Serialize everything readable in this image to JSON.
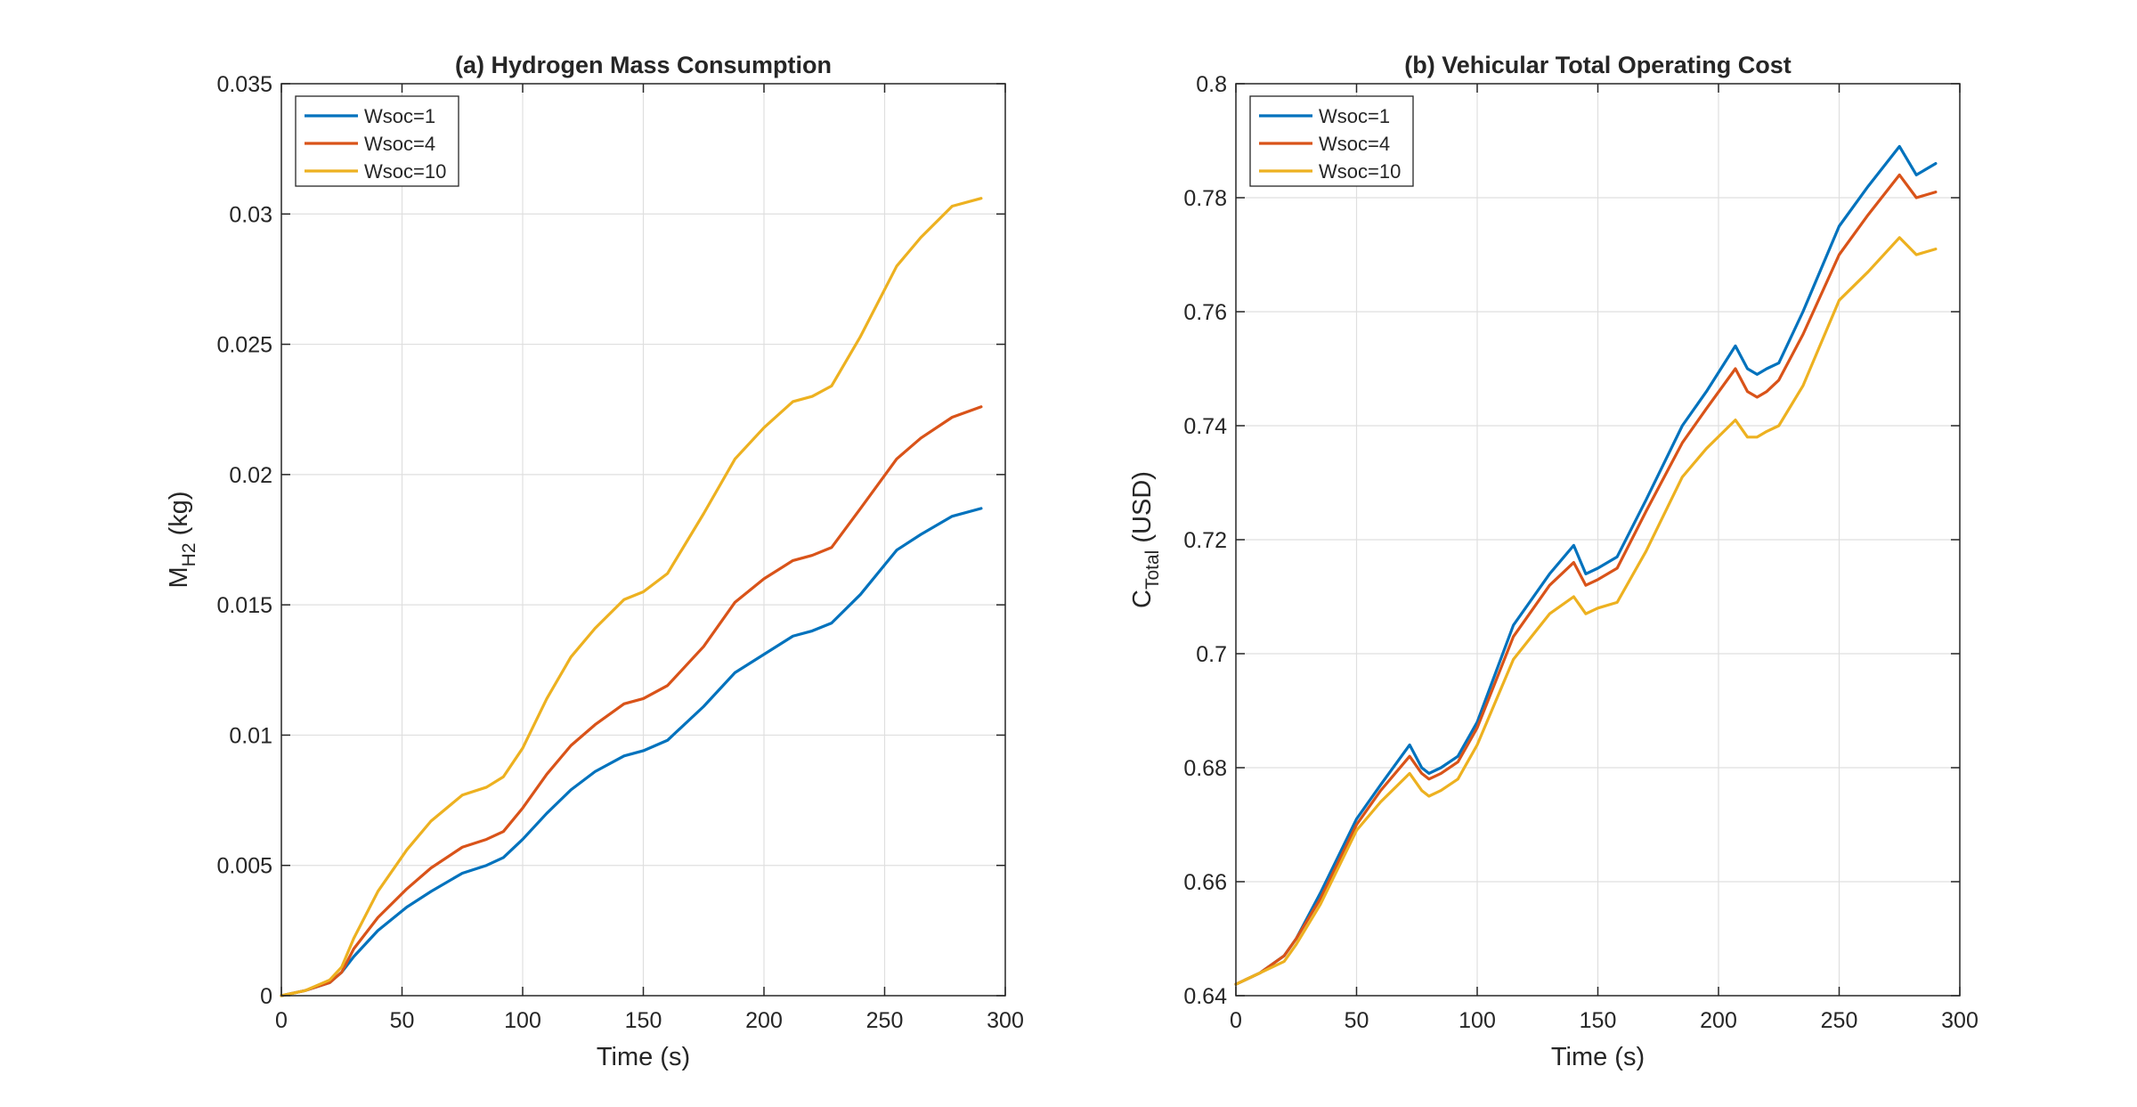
{
  "chart_data": [
    {
      "type": "line",
      "title": "(a) Hydrogen Mass Consumption",
      "xlabel": "Time (s)",
      "ylabel_main": "M",
      "ylabel_sub": "H2",
      "ylabel_unit": " (kg)",
      "xlim": [
        0,
        300
      ],
      "ylim": [
        0,
        0.035
      ],
      "xticks": [
        0,
        50,
        100,
        150,
        200,
        250,
        300
      ],
      "yticks": [
        0,
        0.005,
        0.01,
        0.015,
        0.02,
        0.025,
        0.03,
        0.035
      ],
      "xtick_labels": [
        "0",
        "50",
        "100",
        "150",
        "200",
        "250",
        "300"
      ],
      "ytick_labels": [
        "0",
        "0.005",
        "0.01",
        "0.015",
        "0.02",
        "0.025",
        "0.03",
        "0.035"
      ],
      "grid": true,
      "legend_position": "top-left",
      "x": [
        0,
        10,
        20,
        25,
        30,
        40,
        52,
        62,
        75,
        85,
        92,
        100,
        110,
        120,
        130,
        142,
        150,
        160,
        175,
        188,
        200,
        212,
        220,
        228,
        240,
        255,
        265,
        278,
        290
      ],
      "series": [
        {
          "name": "Wsoc=1",
          "color": "#0072BD",
          "values": [
            0,
            0.0002,
            0.0005,
            0.0009,
            0.0015,
            0.0025,
            0.0034,
            0.004,
            0.0047,
            0.005,
            0.0053,
            0.006,
            0.007,
            0.0079,
            0.0086,
            0.0092,
            0.0094,
            0.0098,
            0.0111,
            0.0124,
            0.0131,
            0.0138,
            0.014,
            0.0143,
            0.0154,
            0.0171,
            0.0177,
            0.0184,
            0.0187
          ]
        },
        {
          "name": "Wsoc=4",
          "color": "#D95319",
          "values": [
            0,
            0.0002,
            0.0005,
            0.0009,
            0.0018,
            0.003,
            0.0041,
            0.0049,
            0.0057,
            0.006,
            0.0063,
            0.0072,
            0.0085,
            0.0096,
            0.0104,
            0.0112,
            0.0114,
            0.0119,
            0.0134,
            0.0151,
            0.016,
            0.0167,
            0.0169,
            0.0172,
            0.0187,
            0.0206,
            0.0214,
            0.0222,
            0.0226
          ]
        },
        {
          "name": "Wsoc=10",
          "color": "#EDB120",
          "values": [
            0,
            0.0002,
            0.0006,
            0.0011,
            0.0022,
            0.004,
            0.0056,
            0.0067,
            0.0077,
            0.008,
            0.0084,
            0.0095,
            0.0114,
            0.013,
            0.0141,
            0.0152,
            0.0155,
            0.0162,
            0.0185,
            0.0206,
            0.0218,
            0.0228,
            0.023,
            0.0234,
            0.0253,
            0.028,
            0.0291,
            0.0303,
            0.0306
          ]
        }
      ]
    },
    {
      "type": "line",
      "title": "(b) Vehicular Total Operating Cost",
      "xlabel": "Time (s)",
      "ylabel_main": "C",
      "ylabel_sub": "Total",
      "ylabel_unit": " (USD)",
      "xlim": [
        0,
        300
      ],
      "ylim": [
        0.64,
        0.8
      ],
      "xticks": [
        0,
        50,
        100,
        150,
        200,
        250,
        300
      ],
      "yticks": [
        0.64,
        0.66,
        0.68,
        0.7,
        0.72,
        0.74,
        0.76,
        0.78,
        0.8
      ],
      "xtick_labels": [
        "0",
        "50",
        "100",
        "150",
        "200",
        "250",
        "300"
      ],
      "ytick_labels": [
        "0.64",
        "0.66",
        "0.68",
        "0.7",
        "0.72",
        "0.74",
        "0.76",
        "0.78",
        "0.8"
      ],
      "grid": true,
      "legend_position": "top-left",
      "x": [
        0,
        10,
        20,
        25,
        35,
        50,
        60,
        72,
        77,
        80,
        85,
        92,
        100,
        115,
        130,
        140,
        145,
        150,
        158,
        170,
        185,
        195,
        207,
        212,
        216,
        220,
        225,
        235,
        250,
        262,
        275,
        282,
        290
      ],
      "series": [
        {
          "name": "Wsoc=1",
          "color": "#0072BD",
          "values": [
            0.642,
            0.644,
            0.647,
            0.65,
            0.658,
            0.671,
            0.677,
            0.684,
            0.68,
            0.679,
            0.68,
            0.682,
            0.688,
            0.705,
            0.714,
            0.719,
            0.714,
            0.715,
            0.717,
            0.727,
            0.74,
            0.746,
            0.754,
            0.75,
            0.749,
            0.75,
            0.751,
            0.76,
            0.775,
            0.782,
            0.789,
            0.784,
            0.786
          ]
        },
        {
          "name": "Wsoc=4",
          "color": "#D95319",
          "values": [
            0.642,
            0.644,
            0.647,
            0.65,
            0.657,
            0.67,
            0.676,
            0.682,
            0.679,
            0.678,
            0.679,
            0.681,
            0.687,
            0.703,
            0.712,
            0.716,
            0.712,
            0.713,
            0.715,
            0.725,
            0.737,
            0.743,
            0.75,
            0.746,
            0.745,
            0.746,
            0.748,
            0.756,
            0.77,
            0.777,
            0.784,
            0.78,
            0.781
          ]
        },
        {
          "name": "Wsoc=10",
          "color": "#EDB120",
          "values": [
            0.642,
            0.644,
            0.646,
            0.649,
            0.656,
            0.669,
            0.674,
            0.679,
            0.676,
            0.675,
            0.676,
            0.678,
            0.684,
            0.699,
            0.707,
            0.71,
            0.707,
            0.708,
            0.709,
            0.718,
            0.731,
            0.736,
            0.741,
            0.738,
            0.738,
            0.739,
            0.74,
            0.747,
            0.762,
            0.767,
            0.773,
            0.77,
            0.771
          ]
        }
      ]
    }
  ]
}
